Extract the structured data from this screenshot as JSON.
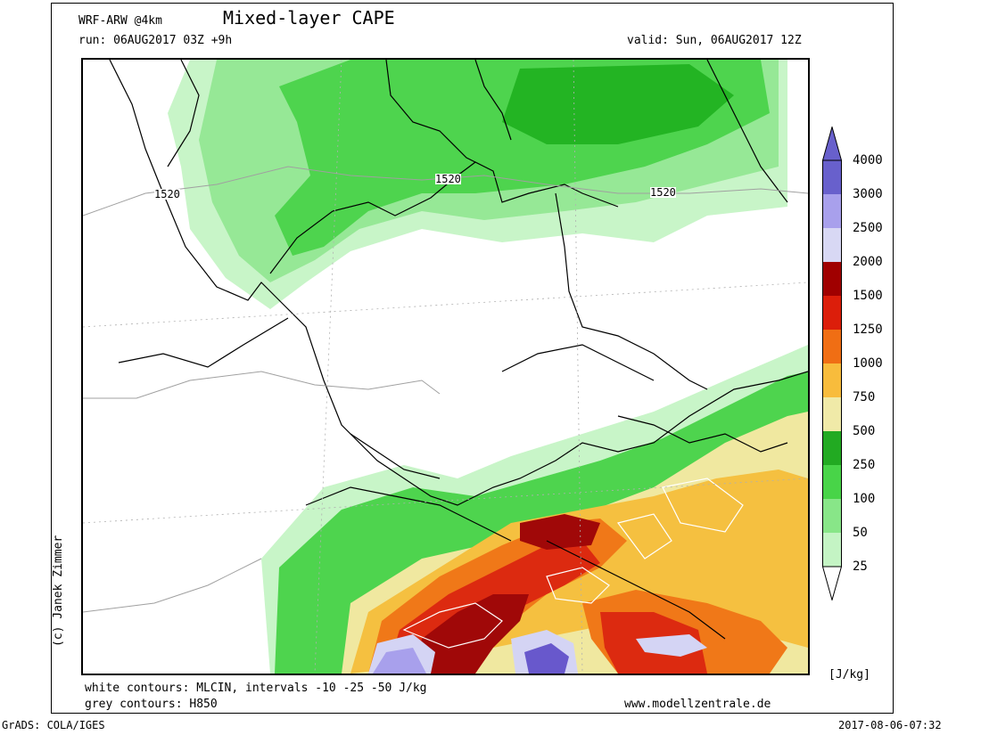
{
  "header": {
    "model": "WRF-ARW @4km",
    "title": "Mixed-layer CAPE",
    "run": "run: 06AUG2017 03Z +9h",
    "valid": "valid: Sun, 06AUG2017 12Z"
  },
  "map": {
    "contour_labels": [
      "1520",
      "1520",
      "1520"
    ],
    "colors": {
      "very_low": "#c8f5c8",
      "low": "#96e896",
      "mid": "#4ed44e",
      "high": "#23b423",
      "yellow": "#f0e8a0",
      "orange_light": "#f5c040",
      "orange": "#f07818",
      "red": "#dc2a10",
      "dark_red": "#a00808",
      "lavender": "#d4d4f4",
      "purple_light": "#a8a0ec",
      "purple": "#6858cc"
    }
  },
  "legend": {
    "unit": "[J/kg]",
    "levels": [
      "4000",
      "3000",
      "2500",
      "2000",
      "1500",
      "1250",
      "1000",
      "750",
      "500",
      "250",
      "100",
      "50",
      "25"
    ],
    "band_colors": [
      "#6860cc",
      "#a8a0ec",
      "#d8d8f4",
      "#a00000",
      "#dc1e0a",
      "#f06e14",
      "#f8bc3c",
      "#f0eaa8",
      "#22aa22",
      "#48d448",
      "#88e688",
      "#c4f4c4"
    ]
  },
  "footer": {
    "note1": "white contours: MLCIN, intervals -10 -25 -50 J/kg",
    "note2": "grey contours: H850",
    "website": "www.modellzentrale.de",
    "software": "GrADS: COLA/IGES",
    "timestamp": "2017-08-06-07:32",
    "copyright": "(c) Janek Zimmer"
  }
}
